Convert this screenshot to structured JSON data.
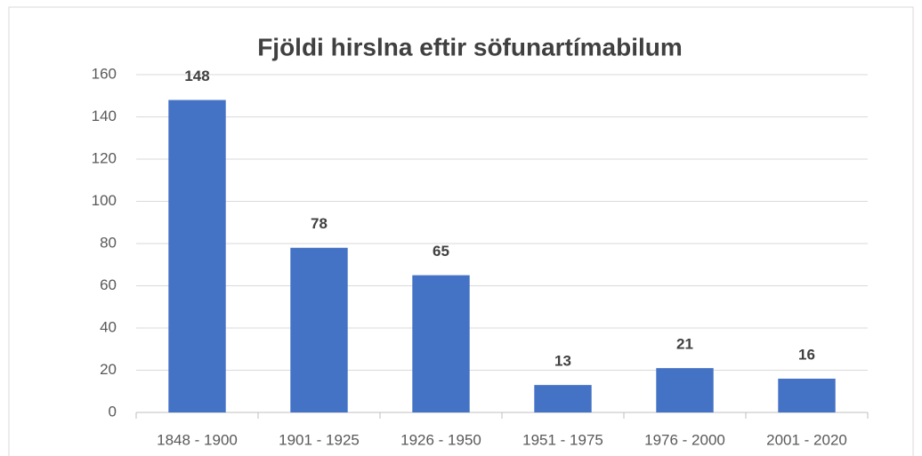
{
  "chart_data": {
    "type": "bar",
    "title": "Fjöldi hirslna eftir söfunartímabilum",
    "categories": [
      "1848 - 1900",
      "1901 - 1925",
      "1926 - 1950",
      "1951 - 1975",
      "1976 - 2000",
      "2001 - 2020"
    ],
    "values": [
      148,
      78,
      65,
      13,
      21,
      16
    ],
    "color": "#4472c4",
    "ylim": [
      0,
      160
    ],
    "yticks": [
      0,
      20,
      40,
      60,
      80,
      100,
      120,
      140,
      160
    ],
    "grid": true
  }
}
